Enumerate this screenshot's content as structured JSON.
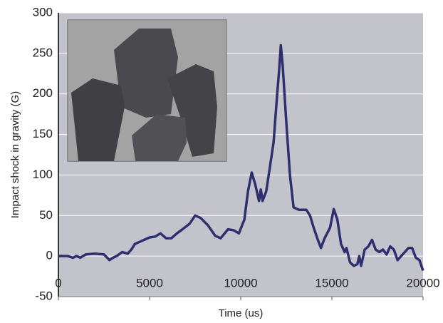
{
  "chart_data": {
    "type": "line",
    "xlabel": "Time (us)",
    "ylabel": "Impact shock in gravity (G)",
    "xlim": [
      0,
      20000
    ],
    "xticks": [
      0,
      5000,
      10000,
      15000,
      20000
    ],
    "ylim": [
      -50,
      300
    ],
    "yticks": [
      -50,
      0,
      50,
      100,
      150,
      200,
      250,
      300
    ],
    "grid": true,
    "color": "#2f2f70",
    "x": [
      0,
      500,
      800,
      1000,
      1200,
      1500,
      2000,
      2500,
      2800,
      3000,
      3200,
      3500,
      3800,
      4000,
      4200,
      4500,
      5000,
      5300,
      5600,
      5900,
      6200,
      6500,
      6800,
      7200,
      7500,
      7800,
      8200,
      8600,
      8900,
      9300,
      9600,
      9900,
      10200,
      10400,
      10600,
      10800,
      11000,
      11100,
      11200,
      11400,
      11600,
      11800,
      12000,
      12100,
      12200,
      12300,
      12500,
      12700,
      12900,
      13200,
      13600,
      13800,
      14000,
      14200,
      14400,
      14600,
      14900,
      15100,
      15300,
      15500,
      15700,
      15800,
      16000,
      16200,
      16400,
      16500,
      16600,
      16800,
      17000,
      17200,
      17400,
      17600,
      17800,
      18000,
      18200,
      18400,
      18600,
      18800,
      19000,
      19200,
      19400,
      19600,
      19800,
      20000
    ],
    "values": [
      0,
      0,
      -2,
      0,
      -2,
      2,
      3,
      2,
      -5,
      -2,
      0,
      5,
      3,
      8,
      15,
      18,
      23,
      24,
      28,
      22,
      22,
      28,
      33,
      40,
      50,
      47,
      38,
      25,
      22,
      33,
      32,
      28,
      45,
      80,
      103,
      88,
      68,
      82,
      68,
      80,
      110,
      140,
      200,
      228,
      260,
      235,
      165,
      100,
      60,
      57,
      57,
      50,
      35,
      22,
      10,
      22,
      35,
      58,
      45,
      15,
      5,
      10,
      -8,
      -12,
      -10,
      0,
      -12,
      8,
      12,
      20,
      8,
      5,
      8,
      2,
      12,
      8,
      -5,
      0,
      5,
      10,
      10,
      -2,
      -5,
      -18
    ]
  }
}
